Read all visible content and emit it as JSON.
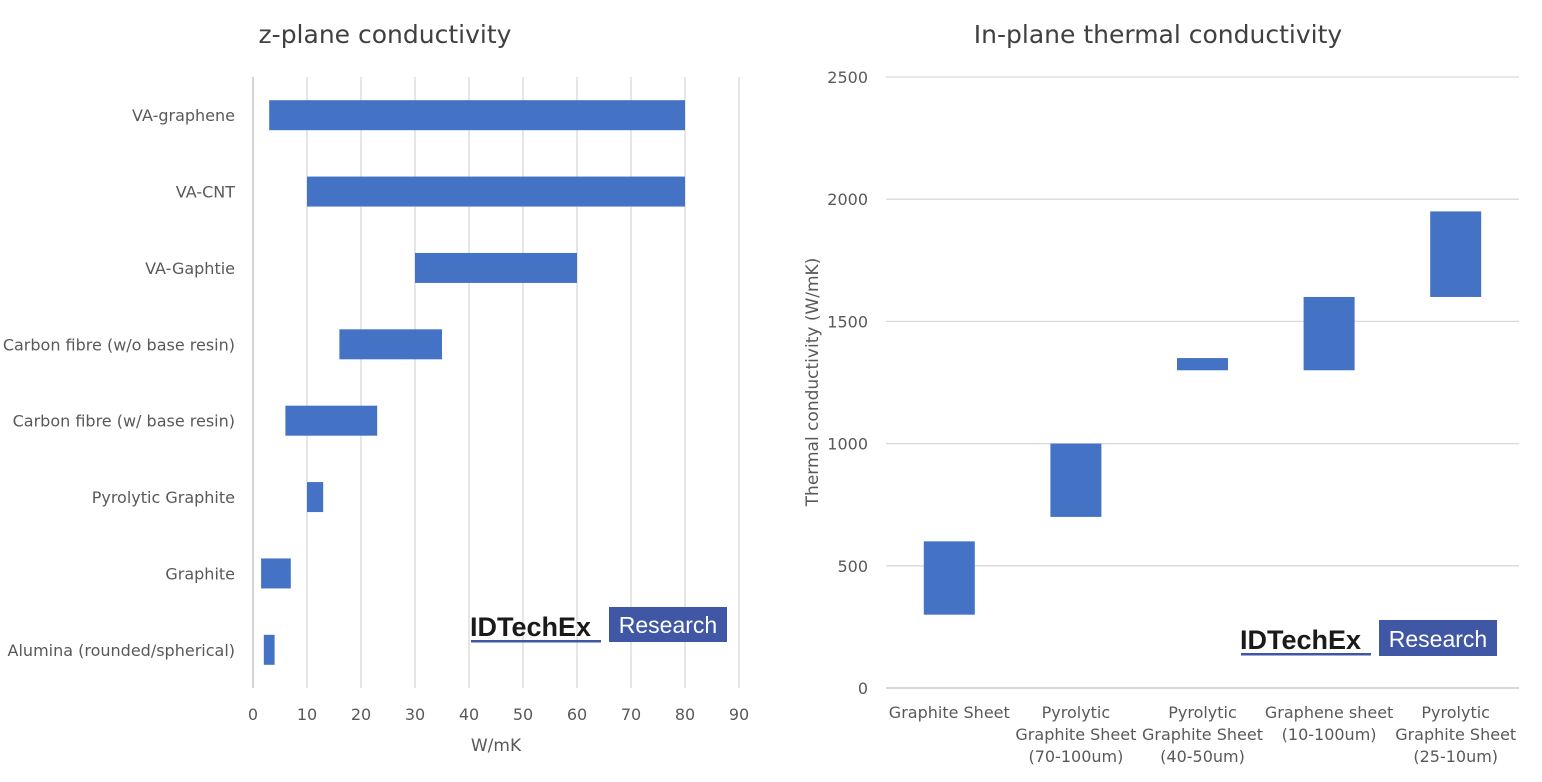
{
  "chart_data": [
    {
      "type": "bar",
      "orientation": "horizontal",
      "subtype": "floating-range",
      "title": "z-plane conductivity",
      "xlabel": "W/mK",
      "ylabel": "",
      "xlim": [
        0,
        90
      ],
      "xticks": [
        "0",
        "10",
        "20",
        "30",
        "40",
        "50",
        "60",
        "70",
        "80",
        "90"
      ],
      "grid": "vertical",
      "categories": [
        "VA-graphene",
        "VA-CNT",
        "VA-Gaphtie",
        "Carbon fibre (w/o base resin)",
        "Carbon fibre (w/ base resin)",
        "Pyrolytic Graphite",
        "Graphite",
        "Alumina (rounded/spherical)"
      ],
      "ranges": [
        [
          3,
          80
        ],
        [
          10,
          80
        ],
        [
          30,
          60
        ],
        [
          16,
          35
        ],
        [
          6,
          23
        ],
        [
          10,
          13
        ],
        [
          1.5,
          7
        ],
        [
          2,
          4
        ]
      ],
      "watermark": "IDTechEx Research"
    },
    {
      "type": "bar",
      "orientation": "vertical",
      "subtype": "floating-range",
      "title": "In-plane thermal conductivity",
      "xlabel": "",
      "ylabel": "Thermal conductivity (W/mK)",
      "ylim": [
        0,
        2500
      ],
      "yticks": [
        "0",
        "500",
        "1000",
        "1500",
        "2000",
        "2500"
      ],
      "grid": "horizontal",
      "categories": [
        [
          "Graphite Sheet"
        ],
        [
          "Pyrolytic",
          "Graphite Sheet",
          "(70-100um)"
        ],
        [
          "Pyrolytic",
          "Graphite Sheet",
          "(40-50um)"
        ],
        [
          "Graphene sheet",
          "(10-100um)"
        ],
        [
          "Pyrolytic",
          "Graphite Sheet",
          "(25-10um)"
        ]
      ],
      "ranges": [
        [
          300,
          600
        ],
        [
          700,
          1000
        ],
        [
          1300,
          1350
        ],
        [
          1300,
          1600
        ],
        [
          1600,
          1950
        ]
      ],
      "watermark": "IDTechEx Research"
    }
  ],
  "colors": {
    "bar": "#4472c4",
    "grid": "#d9d9d9",
    "logo_box": "#3f57a4"
  },
  "logo": {
    "brand": "IDTechEx",
    "box_label": "Research"
  }
}
